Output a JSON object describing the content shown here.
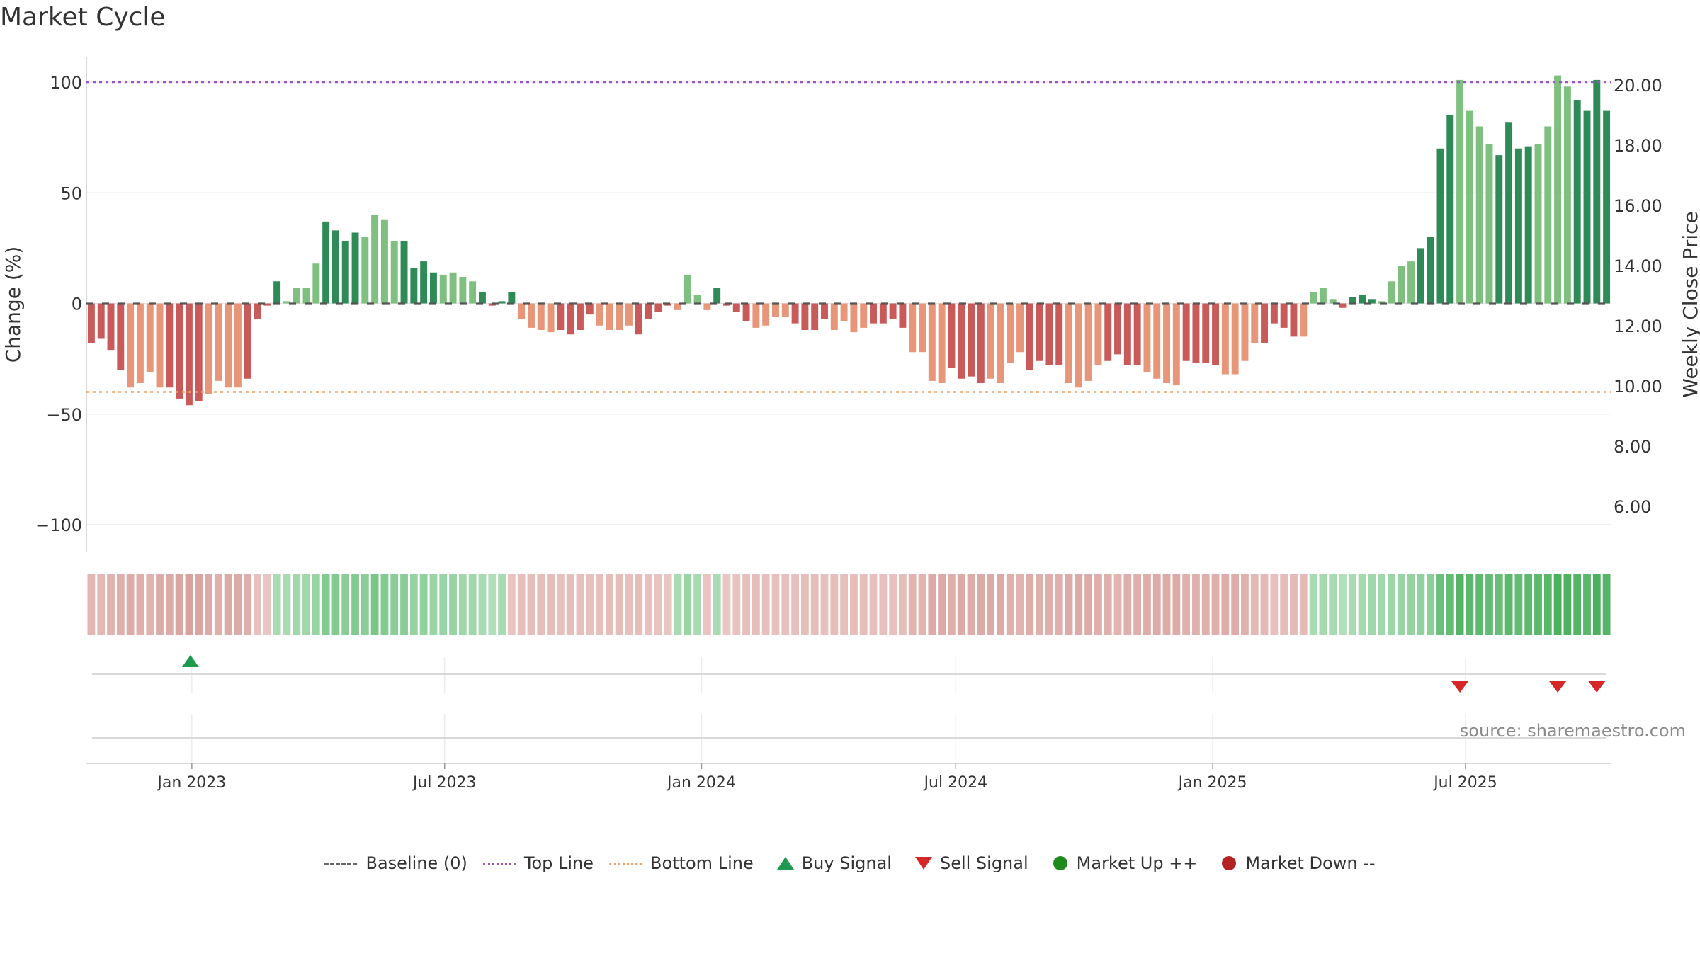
{
  "chart_data": {
    "type": "bar",
    "title": "Market Cycle",
    "ylabel": "Change (%)",
    "y2label": "Weekly Close Price",
    "ylim": [
      -110,
      112
    ],
    "y_ticks": [
      100,
      50,
      0,
      -50,
      -100
    ],
    "y_tick_labels": [
      "100",
      "50",
      "0",
      "−50",
      "−100"
    ],
    "y2_ticks": [
      20,
      18,
      16,
      14,
      12,
      10,
      8,
      6
    ],
    "y2_tick_labels": [
      "20.00",
      "18.00",
      "16.00",
      "14.00",
      "12.00",
      "10.00",
      "8.00",
      "6.00"
    ],
    "x_ticks": [
      "2023-01-01",
      "2023-07-01",
      "2024-01-01",
      "2024-07-01",
      "2025-01-01",
      "2025-07-01"
    ],
    "x_tick_labels": [
      "Jan 2023",
      "Jul 2023",
      "Jan 2024",
      "Jul 2024",
      "Jan 2025",
      "Jul 2025"
    ],
    "first_week": "2022-10-21",
    "week_days": 7,
    "values": [
      -18,
      -16,
      -21,
      -30,
      -38,
      -36,
      -31,
      -38,
      -38,
      -43,
      -46,
      -44,
      -41,
      -35,
      -38,
      -38,
      -34,
      -7,
      -1,
      10,
      1,
      7,
      7,
      18,
      37,
      33,
      28,
      32,
      30,
      40,
      38,
      28,
      28,
      16,
      19,
      14,
      13,
      14,
      12,
      10,
      5,
      -1,
      1,
      5,
      -7,
      -11,
      -12,
      -13,
      -12,
      -14,
      -12,
      -5,
      -10,
      -12,
      -12,
      -10,
      -14,
      -7,
      -4,
      -1,
      -3,
      13,
      4,
      -3,
      7,
      -1,
      -4,
      -8,
      -11,
      -10,
      -6,
      -6,
      -9,
      -12,
      -12,
      -7,
      -12,
      -8,
      -13,
      -11,
      -9,
      -9,
      -7,
      -11,
      -22,
      -22,
      -35,
      -36,
      -29,
      -34,
      -33,
      -36,
      -34,
      -36,
      -27,
      -22,
      -30,
      -26,
      -28,
      -28,
      -36,
      -38,
      -35,
      -28,
      -26,
      -23,
      -28,
      -28,
      -31,
      -34,
      -36,
      -37,
      -26,
      -27,
      -27,
      -28,
      -32,
      -32,
      -26,
      -18,
      -18,
      -9,
      -11,
      -15,
      -15,
      5,
      7,
      2,
      -2,
      3,
      4,
      2,
      1,
      10,
      17,
      19,
      25,
      30,
      70,
      85,
      101,
      87,
      80,
      72,
      67,
      82,
      70,
      71,
      72,
      80,
      103,
      98,
      92,
      87,
      101,
      87
    ],
    "heat_strip": [
      -0.42,
      -0.4,
      -0.46,
      -0.5,
      -0.55,
      -0.5,
      -0.45,
      -0.55,
      -0.55,
      -0.6,
      -0.65,
      -0.6,
      -0.55,
      -0.5,
      -0.55,
      -0.55,
      -0.5,
      -0.3,
      -0.25,
      0.3,
      0.3,
      0.35,
      0.35,
      0.4,
      0.55,
      0.55,
      0.5,
      0.55,
      0.5,
      0.6,
      0.55,
      0.5,
      0.5,
      0.42,
      0.45,
      0.4,
      0.4,
      0.4,
      0.35,
      0.35,
      0.3,
      0.25,
      0.3,
      -0.28,
      -0.32,
      -0.35,
      -0.35,
      -0.35,
      -0.32,
      -0.35,
      -0.32,
      -0.3,
      -0.32,
      -0.35,
      -0.35,
      -0.32,
      -0.35,
      -0.3,
      -0.28,
      -0.25,
      0.3,
      0.4,
      0.3,
      -0.28,
      0.3,
      -0.25,
      -0.28,
      -0.32,
      -0.35,
      -0.32,
      -0.3,
      -0.3,
      -0.32,
      -0.35,
      -0.35,
      -0.3,
      -0.35,
      -0.32,
      -0.35,
      -0.35,
      -0.32,
      -0.32,
      -0.3,
      -0.35,
      -0.45,
      -0.45,
      -0.55,
      -0.55,
      -0.5,
      -0.55,
      -0.52,
      -0.55,
      -0.55,
      -0.55,
      -0.48,
      -0.45,
      -0.52,
      -0.48,
      -0.5,
      -0.5,
      -0.55,
      -0.55,
      -0.55,
      -0.5,
      -0.48,
      -0.45,
      -0.5,
      -0.5,
      -0.52,
      -0.55,
      -0.55,
      -0.55,
      -0.48,
      -0.48,
      -0.48,
      -0.5,
      -0.52,
      -0.52,
      -0.48,
      -0.4,
      -0.4,
      -0.32,
      -0.35,
      -0.38,
      -0.38,
      0.3,
      0.32,
      0.3,
      0.25,
      0.3,
      0.32,
      0.35,
      0.35,
      0.38,
      0.4,
      0.42,
      0.45,
      0.48,
      0.7,
      0.75,
      0.85,
      0.8,
      0.78,
      0.75,
      0.72,
      0.8,
      0.75,
      0.78,
      0.8,
      0.82,
      0.9,
      0.88,
      0.85,
      0.82,
      0.9,
      0.85
    ],
    "buy_signals": [
      10
    ],
    "sell_signals": [
      140,
      150,
      154
    ],
    "top_line": 100,
    "bottom_line": -40,
    "baseline": 0,
    "series": [
      {
        "name": "Baseline (0)"
      },
      {
        "name": "Top Line"
      },
      {
        "name": "Bottom Line"
      },
      {
        "name": "Buy Signal"
      },
      {
        "name": "Sell Signal"
      },
      {
        "name": "Market Up ++"
      },
      {
        "name": "Market Down --"
      }
    ],
    "legend_position": "bottom",
    "grid": true,
    "source": "source: sharemaestro.com",
    "colors": {
      "up_dark": "#2e8b57",
      "up_light": "#7fbf7f",
      "down_dark": "#c85a5a",
      "down_light": "#e8967a",
      "top_line": "#9a55c9",
      "bottom_line": "#f0a060",
      "buy": "#1f9950",
      "sell": "#d62728",
      "market_up": "#1e8a1e",
      "market_down": "#b22222"
    }
  }
}
